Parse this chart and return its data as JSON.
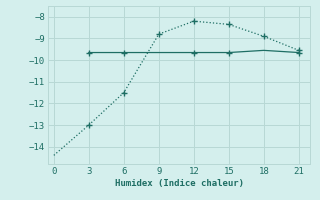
{
  "xlabel": "Humidex (Indice chaleur)",
  "ylabel": "",
  "background_color": "#d4efed",
  "grid_color": "#b8d8d5",
  "line_color": "#1e6e64",
  "x_ticks": [
    0,
    3,
    6,
    9,
    12,
    15,
    18,
    21
  ],
  "xlim": [
    -0.5,
    22
  ],
  "ylim": [
    -14.8,
    -7.5
  ],
  "y_ticks": [
    -8,
    -9,
    -10,
    -11,
    -12,
    -13,
    -14
  ],
  "dotted_x": [
    0,
    3,
    6,
    9,
    12,
    15,
    18,
    21
  ],
  "dotted_y": [
    -14.4,
    -13.0,
    -11.5,
    -8.8,
    -8.2,
    -8.35,
    -8.9,
    -9.55
  ],
  "solid_x": [
    3,
    6,
    9,
    12,
    15,
    18,
    21
  ],
  "solid_y": [
    -9.65,
    -9.65,
    -9.65,
    -9.65,
    -9.65,
    -9.55,
    -9.65
  ],
  "dotted_markers_x": [
    3,
    6,
    9,
    12,
    15,
    18,
    21
  ],
  "dotted_markers_y": [
    -13.0,
    -11.5,
    -8.8,
    -8.2,
    -8.35,
    -8.9,
    -9.55
  ],
  "solid_markers_x": [
    3,
    6,
    12,
    15,
    21
  ],
  "solid_markers_y": [
    -9.65,
    -9.65,
    -9.65,
    -9.65,
    -9.65
  ]
}
